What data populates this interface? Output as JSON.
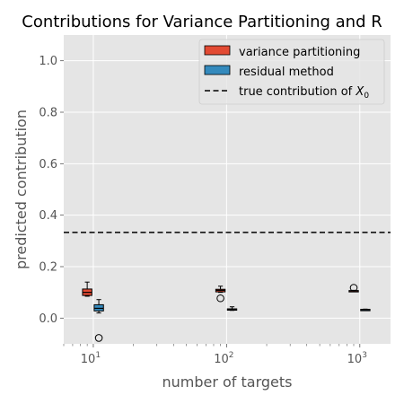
{
  "chart_data": {
    "type": "box",
    "title": "Contributions for Variance Partitioning and R",
    "xlabel": "number of targets",
    "ylabel": "predicted contribution",
    "xscale": "log",
    "xlim": [
      6,
      1700
    ],
    "ylim": [
      -0.1,
      1.1
    ],
    "xticks": [
      {
        "value": 10,
        "base": "10",
        "exp": "1"
      },
      {
        "value": 100,
        "base": "10",
        "exp": "2"
      },
      {
        "value": 1000,
        "base": "10",
        "exp": "3"
      }
    ],
    "yticks": [
      {
        "value": 0.0,
        "label": "0.0"
      },
      {
        "value": 0.2,
        "label": "0.2"
      },
      {
        "value": 0.4,
        "label": "0.4"
      },
      {
        "value": 0.6,
        "label": "0.6"
      },
      {
        "value": 0.8,
        "label": "0.8"
      },
      {
        "value": 1.0,
        "label": "1.0"
      }
    ],
    "grid": true,
    "legend": {
      "placement": "top-right",
      "entries": [
        {
          "label": "variance partitioning",
          "kind": "patch",
          "color": "#E24A33"
        },
        {
          "label": "residual method",
          "kind": "patch",
          "color": "#348ABD"
        },
        {
          "label": "true contribution of ",
          "math": "X",
          "sub": "0",
          "kind": "dashed",
          "color": "#000000"
        }
      ]
    },
    "reference_line": {
      "y": 0.333
    },
    "series": [
      {
        "name": "variance partitioning",
        "color": "#E24A33",
        "boxes": [
          {
            "x": 9.0,
            "whislo": 0.085,
            "q1": 0.088,
            "med": 0.1,
            "q3": 0.113,
            "whishi": 0.14,
            "fliers": []
          },
          {
            "x": 90,
            "whislo": 0.1,
            "q1": 0.102,
            "med": 0.108,
            "q3": 0.112,
            "whishi": 0.124,
            "fliers": [
              0.077
            ]
          },
          {
            "x": 900,
            "whislo": 0.104,
            "q1": 0.104,
            "med": 0.106,
            "q3": 0.107,
            "whishi": 0.108,
            "fliers": [
              0.118
            ]
          }
        ]
      },
      {
        "name": "residual method",
        "color": "#348ABD",
        "boxes": [
          {
            "x": 11.0,
            "whislo": 0.02,
            "q1": 0.028,
            "med": 0.038,
            "q3": 0.052,
            "whishi": 0.072,
            "fliers": [
              -0.077
            ]
          },
          {
            "x": 110,
            "whislo": 0.03,
            "q1": 0.032,
            "med": 0.034,
            "q3": 0.036,
            "whishi": 0.044,
            "fliers": []
          },
          {
            "x": 1100,
            "whislo": 0.032,
            "q1": 0.032,
            "med": 0.033,
            "q3": 0.034,
            "whishi": 0.035,
            "fliers": []
          }
        ]
      }
    ]
  }
}
